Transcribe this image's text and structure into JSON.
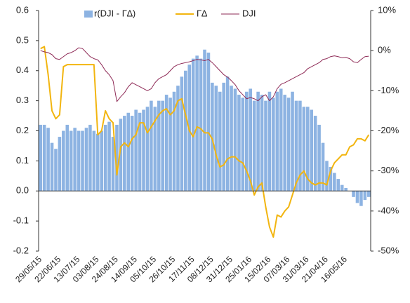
{
  "chart_data": {
    "type": "bar-line",
    "categories": [
      "29/05/15",
      null,
      null,
      null,
      null,
      "22/06/15",
      null,
      null,
      null,
      null,
      "13/07/15",
      null,
      null,
      null,
      null,
      "03/08/15",
      null,
      null,
      null,
      null,
      "24/08/15",
      null,
      null,
      null,
      null,
      "14/09/15",
      null,
      null,
      null,
      null,
      "05/10/15",
      null,
      null,
      null,
      null,
      "26/10/15",
      null,
      null,
      null,
      null,
      "17/11/15",
      null,
      null,
      null,
      null,
      "08/12/15",
      null,
      null,
      null,
      null,
      "31/12/15",
      null,
      null,
      null,
      null,
      "25/01/16",
      null,
      null,
      null,
      null,
      "15/02/16",
      null,
      null,
      null,
      null,
      "07/03/16",
      null,
      null,
      null,
      null,
      "31/03/16",
      null,
      null,
      null,
      null,
      "21/04/16",
      null,
      null,
      null,
      null,
      "16/05/16",
      null,
      null,
      null,
      null,
      null,
      null
    ],
    "series": [
      {
        "name": "r(DJI - Γ∆)",
        "type": "bar",
        "axis": "y",
        "color": "#8db3e2",
        "values": [
          0.22,
          0.22,
          0.21,
          0.16,
          0.14,
          0.18,
          0.2,
          0.22,
          0.2,
          0.21,
          0.2,
          0.2,
          0.21,
          0.22,
          0.2,
          0.19,
          0.2,
          0.22,
          0.23,
          0.18,
          0.22,
          0.24,
          0.25,
          0.26,
          0.25,
          0.27,
          0.26,
          0.27,
          0.28,
          0.3,
          0.28,
          0.3,
          0.3,
          0.32,
          0.31,
          0.33,
          0.35,
          0.38,
          0.4,
          0.42,
          0.44,
          0.45,
          0.44,
          0.47,
          0.46,
          0.36,
          0.35,
          0.33,
          0.36,
          0.38,
          0.35,
          0.34,
          0.32,
          0.31,
          0.33,
          0.34,
          0.3,
          0.33,
          0.32,
          0.3,
          0.33,
          0.31,
          0.33,
          0.34,
          0.32,
          0.31,
          0.33,
          0.3,
          0.3,
          0.28,
          0.28,
          0.27,
          0.25,
          0.22,
          0.16,
          0.1,
          0.08,
          0.06,
          0.04,
          0.02,
          0.01,
          0,
          -0.02,
          -0.04,
          -0.05,
          -0.03,
          -0.02
        ]
      },
      {
        "name": "Γ∆",
        "type": "line",
        "axis": "y2",
        "color": "#f2b50f",
        "values": [
          0.5,
          1,
          -6,
          -15,
          -17,
          -16,
          -4,
          -3.5,
          -3.5,
          -3.5,
          -3.5,
          -3.5,
          -3.5,
          -3.5,
          -3.5,
          -21,
          -20,
          -15,
          -17,
          -18,
          -31,
          -24,
          -23,
          -24,
          -22,
          -21,
          -18,
          -18,
          -20.5,
          -19,
          -17.5,
          -16,
          -15,
          -14.5,
          -16,
          -15,
          -12.5,
          -12,
          -16,
          -20,
          -21.5,
          -19,
          -19.5,
          -20.5,
          -20.5,
          -22,
          -26,
          -29,
          -28.5,
          -27,
          -26.5,
          -26.5,
          -27.5,
          -28,
          -30,
          -32.5,
          -36,
          -34,
          -33,
          -39,
          -44,
          -46.5,
          -41,
          -41.5,
          -40,
          -39,
          -36,
          -33,
          -31,
          -30,
          -32,
          -33,
          -33.5,
          -33,
          -33,
          -33.5,
          -30,
          -28,
          -27,
          -26,
          -26,
          -24,
          -23.5,
          -22,
          -22,
          -22.5,
          -21
        ]
      },
      {
        "name": "DJI",
        "type": "line",
        "axis": "y2",
        "color": "#8e2a56",
        "values": [
          0,
          -0.3,
          -0.5,
          -1,
          -2,
          -2.2,
          -1.5,
          -0.8,
          -0.5,
          0,
          0.7,
          0.5,
          -0.5,
          -1.5,
          -2,
          -2.3,
          -3.5,
          -5,
          -6,
          -7.5,
          -12.7,
          -11.5,
          -10.5,
          -9,
          -8,
          -8.5,
          -9,
          -9.5,
          -10,
          -9.5,
          -8,
          -7,
          -6.5,
          -6,
          -5,
          -4,
          -3.5,
          -3.2,
          -3,
          -2.8,
          -2.5,
          -2.2,
          -2.3,
          -2.5,
          -2.2,
          -3,
          -4,
          -5,
          -6,
          -6.6,
          -7.5,
          -8.5,
          -10,
          -11,
          -12,
          -11.7,
          -12,
          -12.5,
          -11.5,
          -11,
          -12.5,
          -11.5,
          -9.5,
          -8.4,
          -8,
          -7.5,
          -7,
          -6.5,
          -6,
          -5.5,
          -4.5,
          -4,
          -3.5,
          -3,
          -2.2,
          -2,
          -1.5,
          -1.3,
          -1.5,
          -1.8,
          -1.7,
          -2,
          -2.8,
          -3,
          -2.2,
          -1.5,
          -1.4
        ]
      }
    ],
    "ylim": [
      -0.2,
      0.6
    ],
    "yticks": [
      {
        "value": -0.2,
        "label": "-0.2"
      },
      {
        "value": -0.1,
        "label": "-0.1"
      },
      {
        "value": 0,
        "label": "0.0"
      },
      0.1,
      0.2,
      0.3,
      0.4,
      0.5,
      0.6
    ],
    "y2lim": [
      -50,
      10
    ],
    "y2ticks": [
      {
        "value": -50,
        "label": "-50%"
      },
      {
        "value": -40,
        "label": "-40%"
      },
      {
        "value": -30,
        "label": "-30%"
      },
      {
        "value": -20,
        "label": "-20%"
      },
      {
        "value": -10,
        "label": "-10%"
      },
      {
        "value": 0,
        "label": "0%"
      },
      {
        "value": 10,
        "label": "10%"
      }
    ],
    "legend": "top",
    "grid": false
  }
}
